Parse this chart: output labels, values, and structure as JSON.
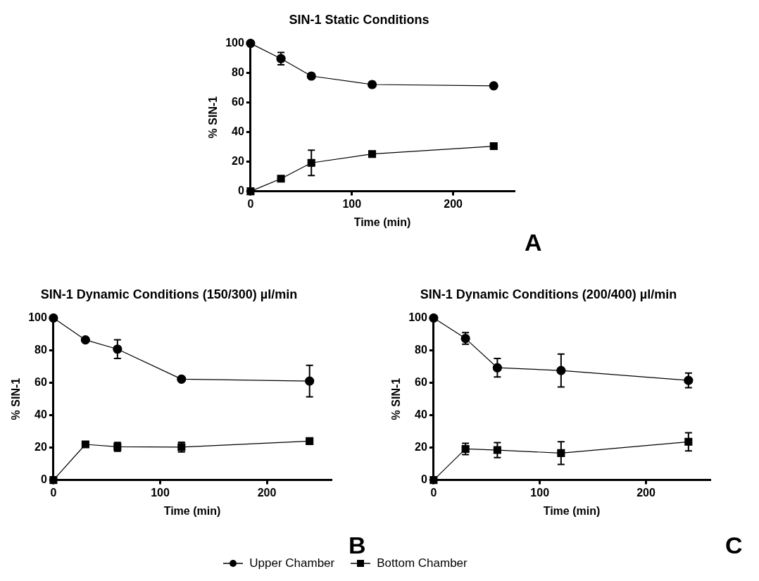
{
  "chart_data": [
    {
      "type": "line",
      "title": "SIN-1 Static Conditions",
      "xlabel": "Time (min)",
      "ylabel": "% SIN-1",
      "annotations": [
        "A"
      ],
      "xlim": [
        0,
        260
      ],
      "xticks": [
        0,
        100,
        200
      ],
      "ylim": [
        0,
        100
      ],
      "yticks": [
        0,
        20,
        40,
        60,
        80,
        100
      ],
      "grid": false,
      "legend": false,
      "series": [
        {
          "color": "#000000",
          "marker": "circle",
          "x": [
            0,
            30,
            60,
            120,
            240
          ],
          "values": [
            100,
            89.7,
            77.9,
            72.2,
            71.3
          ],
          "errors": [
            null,
            4.2,
            null,
            null,
            null
          ]
        },
        {
          "color": "#000000",
          "marker": "square",
          "x": [
            0,
            30,
            60,
            120,
            240
          ],
          "values": [
            0,
            8.5,
            19.2,
            25.2,
            30.5
          ],
          "errors": [
            null,
            null,
            8.6,
            null,
            null
          ]
        }
      ]
    },
    {
      "type": "line",
      "title": "SIN-1 Dynamic Conditions (150/300) µl/min",
      "xlabel": "Time (min)",
      "ylabel": "% SIN-1",
      "annotations": [
        "B"
      ],
      "xlim": [
        0,
        260
      ],
      "xticks": [
        0,
        100,
        200
      ],
      "ylim": [
        0,
        100
      ],
      "yticks": [
        0,
        20,
        40,
        60,
        80,
        100
      ],
      "grid": false,
      "legend": false,
      "series": [
        {
          "color": "#000000",
          "marker": "circle",
          "x": [
            0,
            30,
            60,
            120,
            240
          ],
          "values": [
            100,
            86.5,
            80.8,
            62.3,
            61.1
          ],
          "errors": [
            null,
            null,
            5.8,
            null,
            9.7
          ]
        },
        {
          "color": "#000000",
          "marker": "square",
          "x": [
            0,
            30,
            60,
            120,
            240
          ],
          "values": [
            0,
            22,
            20.5,
            20.3,
            24
          ],
          "errors": [
            null,
            null,
            2.7,
            3,
            null
          ]
        }
      ]
    },
    {
      "type": "line",
      "title": "SIN-1 Dynamic Conditions (200/400) µl/min",
      "xlabel": "Time (min)",
      "ylabel": "% SIN-1",
      "annotations": [
        "C"
      ],
      "xlim": [
        0,
        260
      ],
      "xticks": [
        0,
        100,
        200
      ],
      "ylim": [
        0,
        100
      ],
      "yticks": [
        0,
        20,
        40,
        60,
        80,
        100
      ],
      "grid": false,
      "legend": "bottom",
      "series": [
        {
          "name": "Upper Chamber",
          "color": "#000000",
          "marker": "circle",
          "x": [
            0,
            30,
            60,
            120,
            240
          ],
          "values": [
            100,
            87.4,
            69.3,
            67.6,
            61.5
          ],
          "errors": [
            null,
            3.6,
            5.7,
            10.2,
            4.5
          ]
        },
        {
          "name": "Bottom Chamber",
          "color": "#000000",
          "marker": "square",
          "x": [
            0,
            30,
            60,
            120,
            240
          ],
          "values": [
            0,
            19.2,
            18.5,
            16.6,
            23.6
          ],
          "errors": [
            null,
            3.5,
            4.6,
            7,
            5.6
          ]
        }
      ]
    }
  ]
}
